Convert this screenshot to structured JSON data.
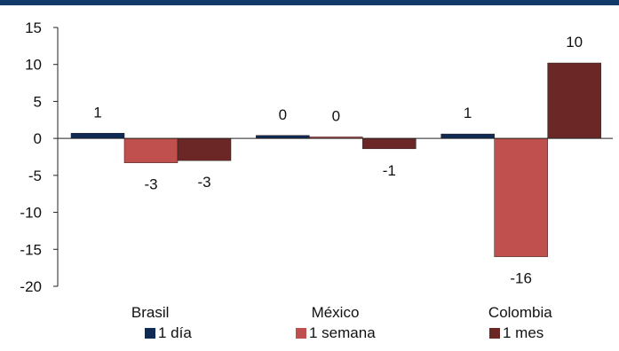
{
  "theme": {
    "top_rule_color": "#123a6b",
    "axis_color": "#222222"
  },
  "chart_data": {
    "type": "bar",
    "title": "",
    "xlabel": "",
    "ylabel": "",
    "categories": [
      "Brasil",
      "México",
      "Colombia"
    ],
    "ylim": [
      -20,
      15
    ],
    "yticks": [
      15,
      10,
      5,
      0,
      -5,
      -10,
      -15,
      -20
    ],
    "grid": false,
    "legend_position": "bottom",
    "series": [
      {
        "name": "1 día",
        "color": "#0f2b55",
        "values": [
          0.7,
          0.4,
          0.6
        ],
        "labels": [
          "1",
          "0",
          "1"
        ]
      },
      {
        "name": "1 semana",
        "color": "#c0504d",
        "values": [
          -3.3,
          0.2,
          -16.0
        ],
        "labels": [
          "-3",
          "0",
          "-16"
        ]
      },
      {
        "name": "1 mes",
        "color": "#6b2626",
        "values": [
          -3.0,
          -1.4,
          10.2
        ],
        "labels": [
          "-3",
          "-1",
          "10"
        ]
      }
    ]
  }
}
